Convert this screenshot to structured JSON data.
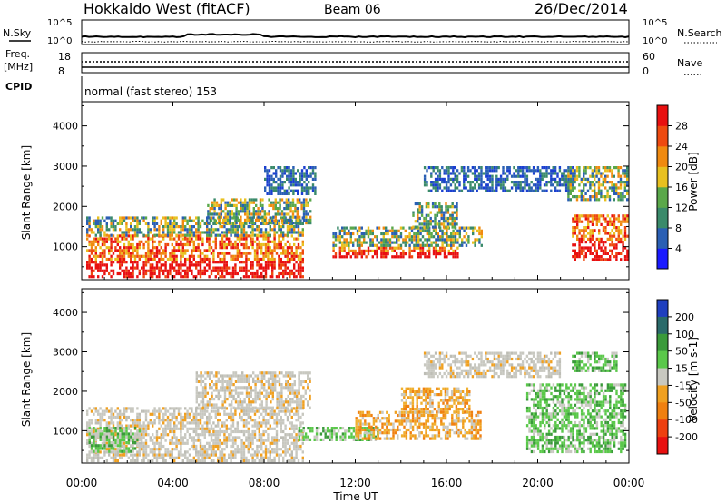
{
  "header": {
    "radar": "Hokkaido West (fitACF)",
    "beam": "Beam 06",
    "date": "26/Dec/2014"
  },
  "status_panels": {
    "nsky_label": "N.Sky",
    "nsky_ticks": [
      "10^5",
      "10^0"
    ],
    "nsearch_label": "N.Search",
    "nsearch_ticks": [
      "10^5",
      "10^0"
    ],
    "freq_label": "Freq.",
    "freq_unit": "[MHz]",
    "freq_ticks": [
      "18",
      "8"
    ],
    "nave_label": "Nave",
    "nave_ticks": [
      "60",
      "0"
    ],
    "cpid_label": "CPID",
    "cpid_text": "normal (fast stereo) 153"
  },
  "chart_data": [
    {
      "type": "heatmap",
      "name": "power",
      "ylabel": "Slant Range [km]",
      "xlabel": "",
      "ylim": [
        180,
        4600
      ],
      "yticks": [
        "1000",
        "2000",
        "3000",
        "4000"
      ],
      "xlim": [
        0,
        24
      ],
      "colorbar_label": "Power [dB]",
      "colorbar_ticks": [
        "4",
        "8",
        "12",
        "16",
        "20",
        "24",
        "28"
      ],
      "colorbar_colors": [
        "#1a1aff",
        "#2a5fb4",
        "#3a8a6a",
        "#5aa84a",
        "#e8c020",
        "#f08a10",
        "#ee4a10",
        "#e81010"
      ],
      "echo_regions": [
        {
          "t0": 0.2,
          "t1": 9.7,
          "r0": 250,
          "r1": 1300,
          "level": "high"
        },
        {
          "t0": 0.2,
          "t1": 9.7,
          "r0": 1300,
          "r1": 1750,
          "level": "mid"
        },
        {
          "t0": 5.5,
          "t1": 10.0,
          "r0": 1600,
          "r1": 2200,
          "level": "mid"
        },
        {
          "t0": 8.0,
          "t1": 10.2,
          "r0": 2300,
          "r1": 3000,
          "level": "low"
        },
        {
          "t0": 11.0,
          "t1": 16.5,
          "r0": 750,
          "r1": 1000,
          "level": "high"
        },
        {
          "t0": 11.0,
          "t1": 17.5,
          "r0": 1000,
          "r1": 1500,
          "level": "mid"
        },
        {
          "t0": 14.5,
          "t1": 16.5,
          "r0": 1500,
          "r1": 2100,
          "level": "mid"
        },
        {
          "t0": 15.0,
          "t1": 21.5,
          "r0": 2400,
          "r1": 3000,
          "level": "low"
        },
        {
          "t0": 21.5,
          "t1": 23.9,
          "r0": 700,
          "r1": 1800,
          "level": "high"
        },
        {
          "t0": 21.3,
          "t1": 23.9,
          "r0": 2200,
          "r1": 3000,
          "level": "mid"
        }
      ]
    },
    {
      "type": "heatmap",
      "name": "velocity",
      "ylabel": "Slant Range [km]",
      "xlabel": "Time UT",
      "ylim": [
        180,
        4600
      ],
      "yticks": [
        "1000",
        "2000",
        "3000",
        "4000"
      ],
      "xlim": [
        0,
        24
      ],
      "xticks": [
        "00:00",
        "04:00",
        "08:00",
        "12:00",
        "16:00",
        "20:00",
        "00:00"
      ],
      "colorbar_label": "Velocity [m s-1]",
      "colorbar_ticks": [
        "200",
        "100",
        "50",
        "15",
        "-15",
        "-50",
        "-100",
        "-200"
      ],
      "colorbar_colors": [
        "#1f3fbf",
        "#2a6a6a",
        "#3a9a3a",
        "#5ac84a",
        "#c8c8c0",
        "#f0a020",
        "#f08010",
        "#ee4010",
        "#e81010"
      ],
      "echo_regions": [
        {
          "t0": 0.2,
          "t1": 9.7,
          "r0": 250,
          "r1": 1600,
          "level": "gray"
        },
        {
          "t0": 5.0,
          "t1": 10.0,
          "r0": 1600,
          "r1": 2500,
          "level": "gray"
        },
        {
          "t0": 0.3,
          "t1": 2.5,
          "r0": 500,
          "r1": 1100,
          "level": "green"
        },
        {
          "t0": 9.5,
          "t1": 13.0,
          "r0": 800,
          "r1": 1100,
          "level": "green"
        },
        {
          "t0": 12.0,
          "t1": 17.5,
          "r0": 800,
          "r1": 1500,
          "level": "orange"
        },
        {
          "t0": 14.0,
          "t1": 17.0,
          "r0": 1500,
          "r1": 2100,
          "level": "orange"
        },
        {
          "t0": 15.0,
          "t1": 21.0,
          "r0": 2400,
          "r1": 3000,
          "level": "gray"
        },
        {
          "t0": 19.5,
          "t1": 23.8,
          "r0": 500,
          "r1": 2200,
          "level": "green"
        },
        {
          "t0": 21.5,
          "t1": 23.5,
          "r0": 2500,
          "r1": 3000,
          "level": "green"
        }
      ]
    }
  ]
}
